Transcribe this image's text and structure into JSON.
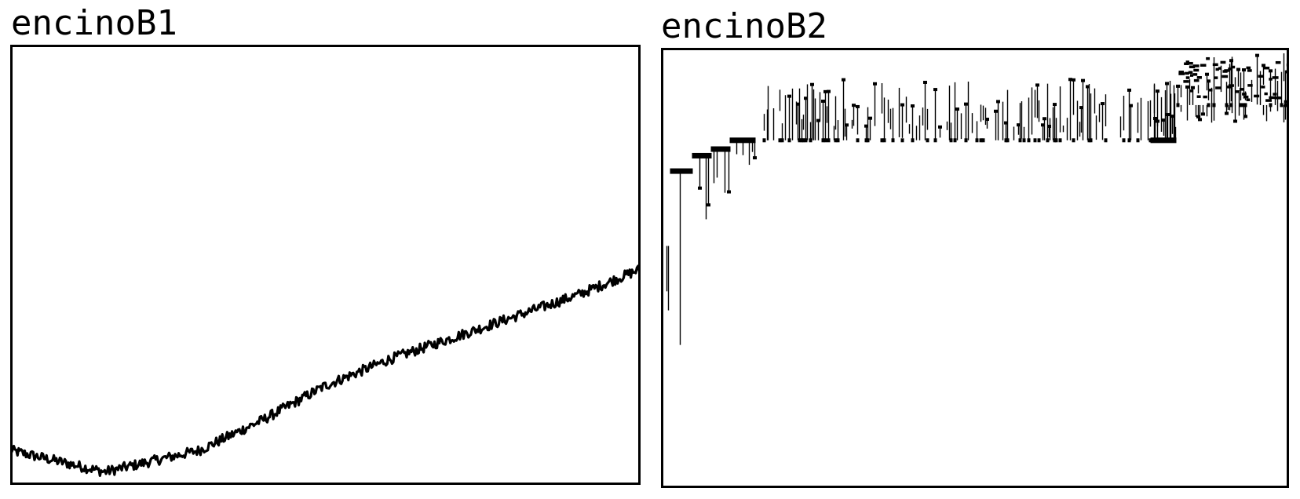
{
  "chart_data": [
    {
      "panel_title": "encinoB1",
      "type": "line",
      "color": "#000000",
      "axes_visible": false,
      "grid": false,
      "trend_points": {
        "x": [
          0,
          15,
          30,
          40,
          50,
          60,
          70,
          80,
          90,
          100
        ],
        "y": [
          0.06,
          0.01,
          0.06,
          0.13,
          0.21,
          0.27,
          0.32,
          0.37,
          0.42,
          0.48
        ]
      },
      "noise_amplitude": 0.012,
      "ylim": [
        -0.02,
        1.0
      ],
      "xlim": [
        0,
        100
      ]
    },
    {
      "panel_title": "encinoB2",
      "type": "line",
      "color": "#000000",
      "axes_visible": false,
      "grid": false,
      "segments": [
        {
          "x": [
            0,
            1.5
          ],
          "base": 0.55,
          "spikes_low": [
            0.05,
            0.22
          ],
          "bar": 0.0
        },
        {
          "x": [
            1.5,
            5
          ],
          "base": 0.72,
          "spikes_low": [
            0.15,
            0.58
          ],
          "bar": 0.018
        },
        {
          "x": [
            5,
            8
          ],
          "base": 0.755,
          "spikes_low": [
            0.05,
            0.2
          ],
          "bar": 0.014
        },
        {
          "x": [
            8,
            11
          ],
          "base": 0.77,
          "spikes_low": [
            0.03,
            0.1
          ],
          "bar": 0.012
        },
        {
          "x": [
            11,
            15
          ],
          "base": 0.79,
          "spikes_low": [
            0.02,
            0.06
          ],
          "bar": 0.012
        },
        {
          "x": [
            15,
            82
          ],
          "base": 0.79,
          "spikes_high": [
            0.82,
            0.93
          ],
          "bar": 0.0
        },
        {
          "x": [
            78,
            82
          ],
          "base": 0.79,
          "spikes_high": [
            0.82,
            0.95
          ],
          "bar": 0.008
        },
        {
          "x": [
            82,
            100
          ],
          "base": 0.87,
          "spikes_high": [
            0.9,
            0.99
          ],
          "spikes_low": [
            0.83,
            0.86
          ],
          "bar": 0.0
        }
      ],
      "ylim": [
        0,
        1.0
      ],
      "xlim": [
        0,
        100
      ]
    }
  ]
}
